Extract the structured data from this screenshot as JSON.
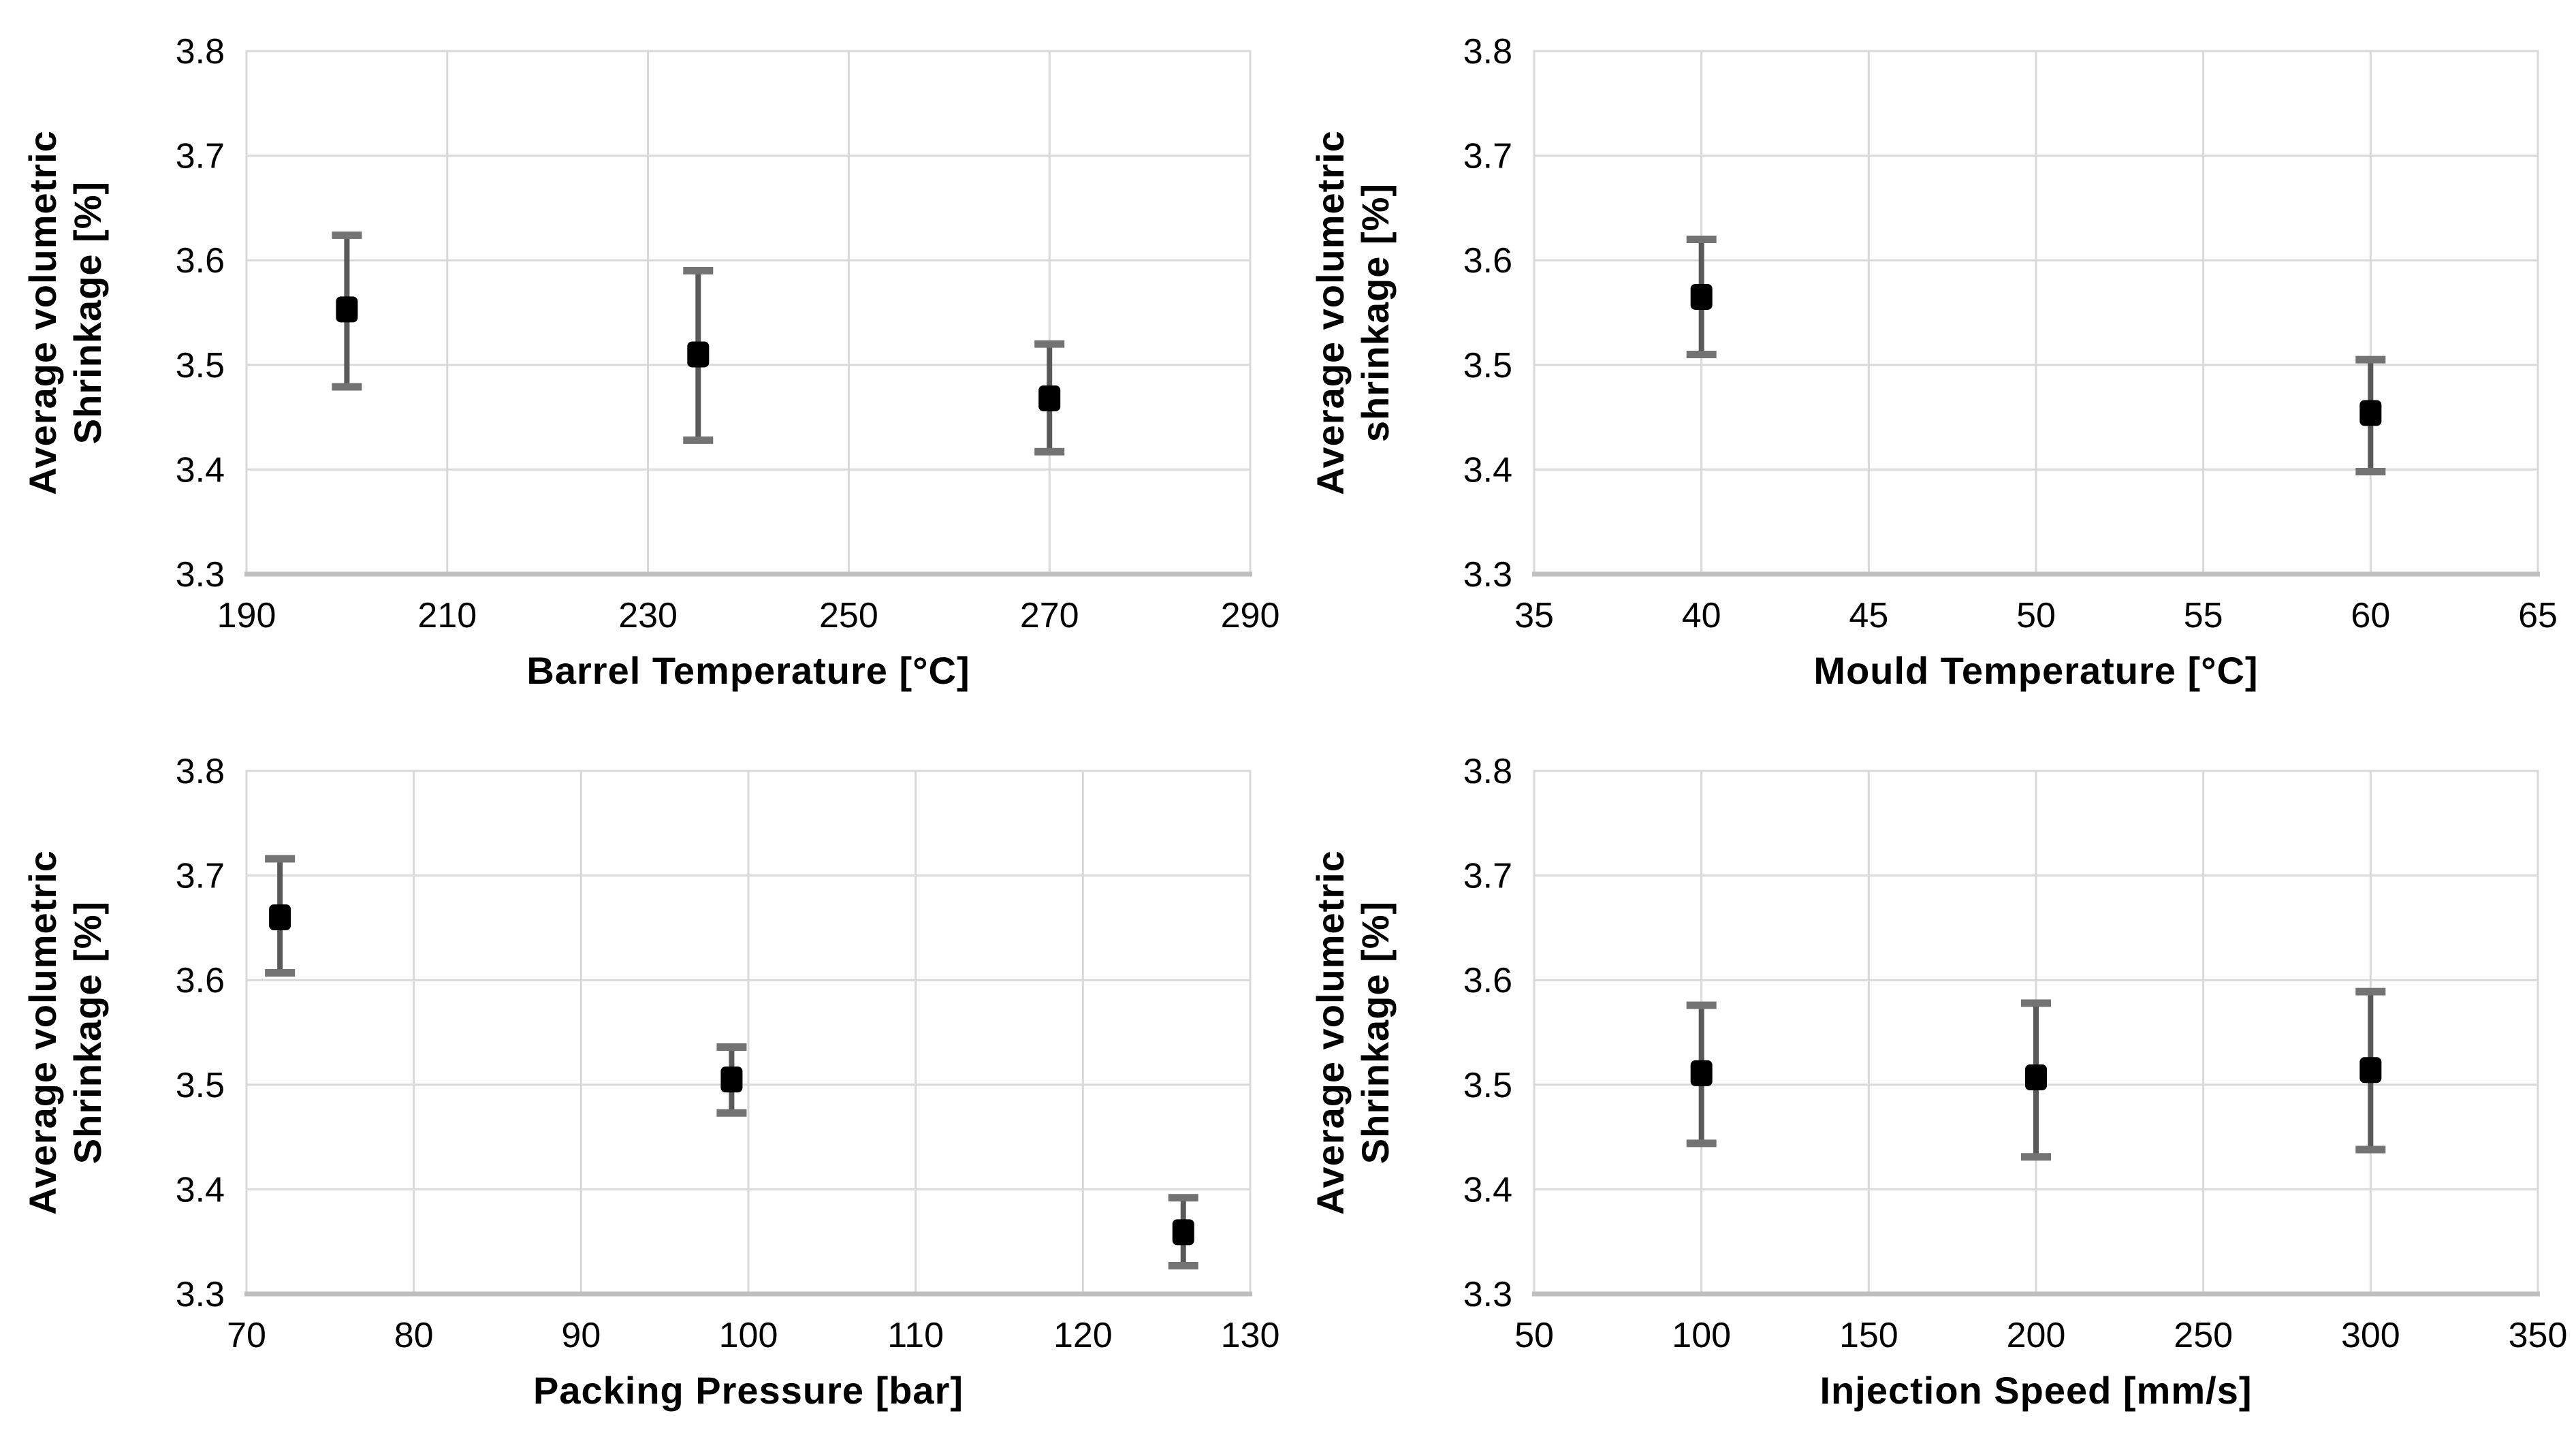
{
  "page": {
    "background": "#ffffff",
    "description": "Four error-bar scatter plots of average volumetric shrinkage versus injection moulding process parameters"
  },
  "styles": {
    "grid_color": "#d9d9d9",
    "plot_border_color": "#d9d9d9",
    "axis_line_color": "#bfbfbf",
    "error_bar_color": "#595959",
    "error_cap_color": "#737373",
    "marker_color": "#000000",
    "text_color": "#000000"
  },
  "chart_data": [
    {
      "type": "scatter",
      "position": "top-left",
      "xlabel": "Barrel Temperature [°C]",
      "ylabel_line1": "Average volumetric",
      "ylabel_line2": "Shrinkage [%]",
      "xlim": [
        190,
        290
      ],
      "ylim": [
        3.3,
        3.8
      ],
      "xticks": [
        190,
        210,
        230,
        250,
        270,
        290
      ],
      "xtick_labels": [
        "190",
        "210",
        "230",
        "250",
        "270",
        "290"
      ],
      "yticks": [
        3.3,
        3.4,
        3.5,
        3.6,
        3.7,
        3.8
      ],
      "ytick_labels": [
        "3.3",
        "3.4",
        "3.5",
        "3.6",
        "3.7",
        "3.8"
      ],
      "grid": true,
      "legend": "none",
      "points": [
        {
          "x": 200,
          "y": 3.553,
          "err_lo": 3.479,
          "err_hi": 3.624
        },
        {
          "x": 235,
          "y": 3.51,
          "err_lo": 3.428,
          "err_hi": 3.59
        },
        {
          "x": 270,
          "y": 3.468,
          "err_lo": 3.417,
          "err_hi": 3.52
        }
      ]
    },
    {
      "type": "scatter",
      "position": "top-right",
      "xlabel": "Mould Temperature [°C]",
      "ylabel_line1": "Average volumetric",
      "ylabel_line2": "shrinkage [%]",
      "xlim": [
        35,
        65
      ],
      "ylim": [
        3.3,
        3.8
      ],
      "xticks": [
        35,
        40,
        45,
        50,
        55,
        60,
        65
      ],
      "xtick_labels": [
        "35",
        "40",
        "45",
        "50",
        "55",
        "60",
        "65"
      ],
      "yticks": [
        3.3,
        3.4,
        3.5,
        3.6,
        3.7,
        3.8
      ],
      "ytick_labels": [
        "3.3",
        "3.4",
        "3.5",
        "3.6",
        "3.7",
        "3.8"
      ],
      "grid": true,
      "legend": "none",
      "points": [
        {
          "x": 40,
          "y": 3.565,
          "err_lo": 3.51,
          "err_hi": 3.62
        },
        {
          "x": 60,
          "y": 3.454,
          "err_lo": 3.398,
          "err_hi": 3.505
        }
      ]
    },
    {
      "type": "scatter",
      "position": "bottom-left",
      "xlabel": "Packing Pressure [bar]",
      "ylabel_line1": "Average volumetric",
      "ylabel_line2": "Shrinkage [%]",
      "xlim": [
        70,
        130
      ],
      "ylim": [
        3.3,
        3.8
      ],
      "xticks": [
        70,
        80,
        90,
        100,
        110,
        120,
        130
      ],
      "xtick_labels": [
        "70",
        "80",
        "90",
        "100",
        "110",
        "120",
        "130"
      ],
      "yticks": [
        3.3,
        3.4,
        3.5,
        3.6,
        3.7,
        3.8
      ],
      "ytick_labels": [
        "3.3",
        "3.4",
        "3.5",
        "3.6",
        "3.7",
        "3.8"
      ],
      "grid": true,
      "legend": "none",
      "points": [
        {
          "x": 72,
          "y": 3.66,
          "err_lo": 3.607,
          "err_hi": 3.716
        },
        {
          "x": 99,
          "y": 3.505,
          "err_lo": 3.473,
          "err_hi": 3.536
        },
        {
          "x": 126,
          "y": 3.359,
          "err_lo": 3.327,
          "err_hi": 3.392
        }
      ]
    },
    {
      "type": "scatter",
      "position": "bottom-right",
      "xlabel": "Injection Speed [mm/s]",
      "ylabel_line1": "Average volumetric",
      "ylabel_line2": "Shrinkage [%]",
      "xlim": [
        50,
        350
      ],
      "ylim": [
        3.3,
        3.8
      ],
      "xticks": [
        50,
        100,
        150,
        200,
        250,
        300,
        350
      ],
      "xtick_labels": [
        "50",
        "100",
        "150",
        "200",
        "250",
        "300",
        "350"
      ],
      "yticks": [
        3.3,
        3.4,
        3.5,
        3.6,
        3.7,
        3.8
      ],
      "ytick_labels": [
        "3.3",
        "3.4",
        "3.5",
        "3.6",
        "3.7",
        "3.8"
      ],
      "grid": true,
      "legend": "none",
      "points": [
        {
          "x": 100,
          "y": 3.511,
          "err_lo": 3.444,
          "err_hi": 3.576
        },
        {
          "x": 200,
          "y": 3.507,
          "err_lo": 3.431,
          "err_hi": 3.578
        },
        {
          "x": 300,
          "y": 3.514,
          "err_lo": 3.438,
          "err_hi": 3.589
        }
      ]
    }
  ]
}
